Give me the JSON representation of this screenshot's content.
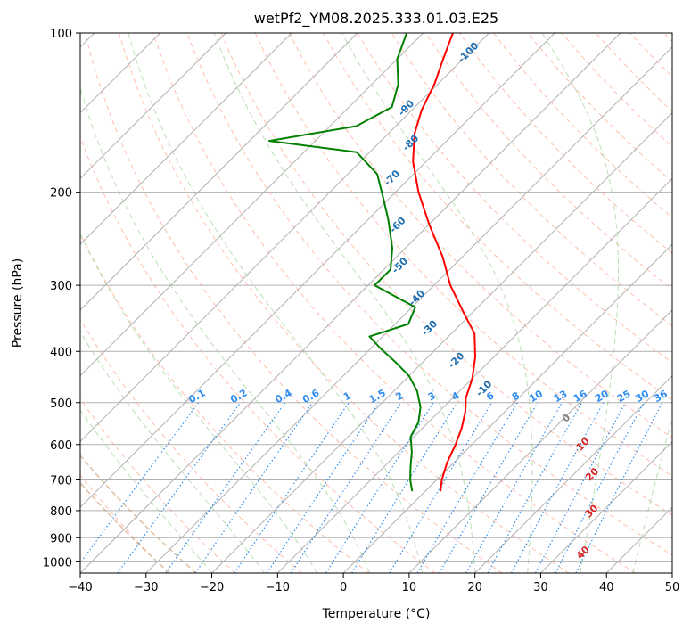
{
  "chart_data": {
    "type": "line",
    "diagram": "skew-T log-P",
    "title": "wetPf2_YM08.2025.333.01.03.E25",
    "xlabel": "Temperature (°C)",
    "ylabel": "Pressure (hPa)",
    "xlim": [
      -40,
      50
    ],
    "ylim": [
      1050,
      100
    ],
    "x_ticks": [
      -40,
      -30,
      -20,
      -10,
      0,
      10,
      20,
      30,
      40,
      50
    ],
    "y_ticks": [
      100,
      200,
      300,
      400,
      500,
      600,
      700,
      800,
      900,
      1000
    ],
    "series": [
      {
        "name": "temperature",
        "color": "#ff0000",
        "points": [
          {
            "p": 735,
            "t": 2.3
          },
          {
            "p": 700,
            "t": 0.8
          },
          {
            "p": 650,
            "t": -1.0
          },
          {
            "p": 600,
            "t": -2.5
          },
          {
            "p": 560,
            "t": -4.0
          },
          {
            "p": 520,
            "t": -6.0
          },
          {
            "p": 490,
            "t": -8.0
          },
          {
            "p": 450,
            "t": -10.0
          },
          {
            "p": 410,
            "t": -12.8
          },
          {
            "p": 370,
            "t": -16.5
          },
          {
            "p": 340,
            "t": -21.0
          },
          {
            "p": 300,
            "t": -27.5
          },
          {
            "p": 265,
            "t": -33.0
          },
          {
            "p": 230,
            "t": -40.0
          },
          {
            "p": 200,
            "t": -46.5
          },
          {
            "p": 175,
            "t": -52.0
          },
          {
            "p": 155,
            "t": -56.0
          },
          {
            "p": 140,
            "t": -58.5
          },
          {
            "p": 125,
            "t": -60.5
          },
          {
            "p": 112,
            "t": -63.0
          },
          {
            "p": 100,
            "t": -65.5
          }
        ]
      },
      {
        "name": "dewpoint",
        "color": "#008000",
        "points": [
          {
            "p": 735,
            "t": -2.0
          },
          {
            "p": 700,
            "t": -4.0
          },
          {
            "p": 660,
            "t": -6.0
          },
          {
            "p": 620,
            "t": -8.0
          },
          {
            "p": 580,
            "t": -10.5
          },
          {
            "p": 545,
            "t": -11.5
          },
          {
            "p": 510,
            "t": -13.5
          },
          {
            "p": 475,
            "t": -16.5
          },
          {
            "p": 445,
            "t": -20.0
          },
          {
            "p": 420,
            "t": -24.0
          },
          {
            "p": 395,
            "t": -28.5
          },
          {
            "p": 375,
            "t": -32.0
          },
          {
            "p": 355,
            "t": -28.0
          },
          {
            "p": 330,
            "t": -29.5
          },
          {
            "p": 300,
            "t": -39.0
          },
          {
            "p": 280,
            "t": -39.0
          },
          {
            "p": 255,
            "t": -42.0
          },
          {
            "p": 225,
            "t": -47.0
          },
          {
            "p": 205,
            "t": -51.0
          },
          {
            "p": 185,
            "t": -55.5
          },
          {
            "p": 168,
            "t": -62.0
          },
          {
            "p": 160,
            "t": -77.0
          },
          {
            "p": 150,
            "t": -66.0
          },
          {
            "p": 138,
            "t": -63.5
          },
          {
            "p": 125,
            "t": -66.0
          },
          {
            "p": 112,
            "t": -70.0
          },
          {
            "p": 100,
            "t": -72.5
          }
        ]
      }
    ],
    "dry_adiabat_labels": [
      "-100",
      "-90",
      "-80",
      "-70",
      "-60",
      "-50",
      "-40",
      "-30",
      "-20",
      "-10",
      "0",
      "10",
      "20",
      "30",
      "40"
    ],
    "mixing_ratio_labels": [
      "0.1",
      "0.2",
      "0.4",
      "0.6",
      "1",
      "1.5",
      "2",
      "3",
      "4",
      "6",
      "8",
      "10",
      "13",
      "16",
      "20",
      "25",
      "30",
      "36"
    ],
    "colors": {
      "isotherm": "#b0b0b0",
      "isobar": "#b0b0b0",
      "dry_adiabat": "#ffa890",
      "moist_adiabat": "#a8d8a0",
      "mixing_ratio": "#2f8ef0",
      "adiabat_label_cold": "#1f6fb0",
      "adiabat_label_zero": "#808080",
      "adiabat_label_warm": "#d62728",
      "outer_curve": "#e0c4a8"
    }
  }
}
